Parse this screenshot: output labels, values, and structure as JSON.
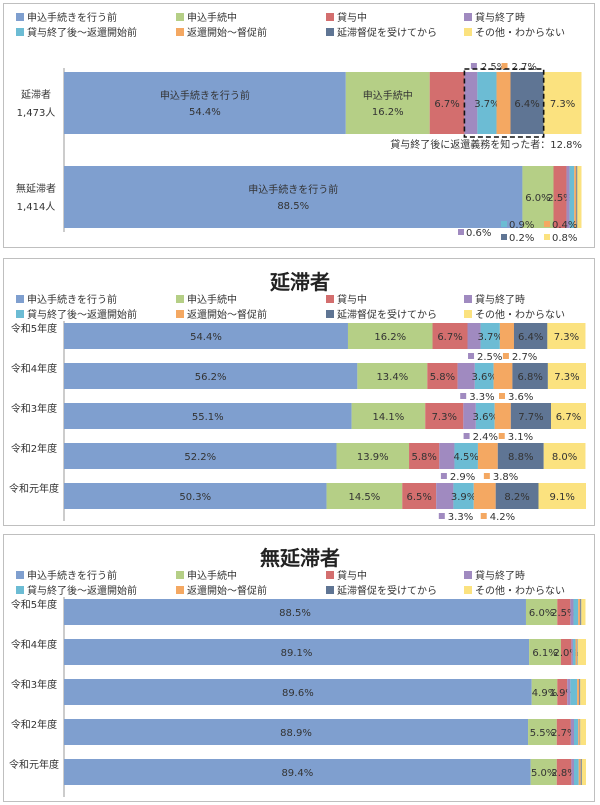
{
  "colors": [
    "#7f9fcf",
    "#b5cf86",
    "#d36e6e",
    "#a08ac0",
    "#6cbcd4",
    "#f4a862",
    "#5f7594",
    "#fbe27f"
  ],
  "legend": [
    "申込手続きを行う前",
    "申込手続中",
    "貸与中",
    "貸与終了時",
    "貸与終了後～返還開始前",
    "返還開始～督促前",
    "延滞督促を受けてから",
    "その他・わからない"
  ],
  "chart_data": [
    {
      "type": "bar",
      "stacked": true,
      "orientation": "horizontal",
      "title": "",
      "categories": [
        "延滞者",
        "無延滞者"
      ],
      "category_counts": [
        "1,473人",
        "1,414人"
      ],
      "series": [
        {
          "name": "申込手続きを行う前",
          "values": [
            54.4,
            88.5
          ]
        },
        {
          "name": "申込手続中",
          "values": [
            16.2,
            6.0
          ]
        },
        {
          "name": "貸与中",
          "values": [
            6.7,
            2.5
          ]
        },
        {
          "name": "貸与終了時",
          "values": [
            2.5,
            0.6
          ]
        },
        {
          "name": "貸与終了後～返還開始前",
          "values": [
            3.7,
            0.9
          ]
        },
        {
          "name": "返還開始～督促前",
          "values": [
            2.7,
            0.4
          ]
        },
        {
          "name": "延滞督促を受けてから",
          "values": [
            6.4,
            0.2
          ]
        },
        {
          "name": "その他・わからない",
          "values": [
            7.3,
            0.8
          ]
        }
      ],
      "annotation": "貸与終了後に返還義務を知った者：12.8%",
      "inner_labels": [
        "申込手続きを行う前",
        "申込手続中"
      ],
      "xlim": [
        0,
        100
      ]
    },
    {
      "type": "bar",
      "stacked": true,
      "orientation": "horizontal",
      "title": "延滞者",
      "categories": [
        "令和5年度",
        "令和4年度",
        "令和3年度",
        "令和2年度",
        "令和元年度"
      ],
      "series": [
        {
          "name": "申込手続きを行う前",
          "values": [
            54.4,
            56.2,
            55.1,
            52.2,
            50.3
          ]
        },
        {
          "name": "申込手続中",
          "values": [
            16.2,
            13.4,
            14.1,
            13.9,
            14.5
          ]
        },
        {
          "name": "貸与中",
          "values": [
            6.7,
            5.8,
            7.3,
            5.8,
            6.5
          ]
        },
        {
          "name": "貸与終了時",
          "values": [
            2.5,
            3.3,
            2.4,
            2.9,
            3.3
          ]
        },
        {
          "name": "貸与終了後～返還開始前",
          "values": [
            3.7,
            3.6,
            3.6,
            4.5,
            3.9
          ]
        },
        {
          "name": "返還開始～督促前",
          "values": [
            2.7,
            3.6,
            3.1,
            3.8,
            4.2
          ]
        },
        {
          "name": "延滞督促を受けてから",
          "values": [
            6.4,
            6.8,
            7.7,
            8.8,
            8.2
          ]
        },
        {
          "name": "その他・わからない",
          "values": [
            7.3,
            7.3,
            6.7,
            8.0,
            9.1
          ]
        }
      ],
      "xlim": [
        0,
        100
      ]
    },
    {
      "type": "bar",
      "stacked": true,
      "orientation": "horizontal",
      "title": "無延滞者",
      "categories": [
        "令和5年度",
        "令和4年度",
        "令和3年度",
        "令和2年度",
        "令和元年度"
      ],
      "series": [
        {
          "name": "申込手続きを行う前",
          "values": [
            88.5,
            89.1,
            89.6,
            88.9,
            89.4
          ]
        },
        {
          "name": "申込手続中",
          "values": [
            6.0,
            6.1,
            4.9,
            5.5,
            5.0
          ]
        },
        {
          "name": "貸与中",
          "values": [
            2.5,
            2.0,
            1.9,
            2.7,
            2.8
          ]
        },
        {
          "name": "貸与終了時",
          "values": [
            0.6,
            0.3,
            0.6,
            0.6,
            0.5
          ]
        },
        {
          "name": "貸与終了後～返還開始前",
          "values": [
            0.9,
            0.5,
            1.3,
            0.8,
            0.9
          ]
        },
        {
          "name": "返還開始～督促前",
          "values": [
            0.4,
            0.3,
            0.4,
            0.3,
            0.4
          ]
        },
        {
          "name": "延滞督促を受けてから",
          "values": [
            0.2,
            0.1,
            0.2,
            0.1,
            0.2
          ]
        },
        {
          "name": "その他・わからない",
          "values": [
            0.8,
            1.6,
            1.1,
            1.1,
            0.8
          ]
        }
      ],
      "xlim": [
        0,
        100
      ]
    }
  ]
}
